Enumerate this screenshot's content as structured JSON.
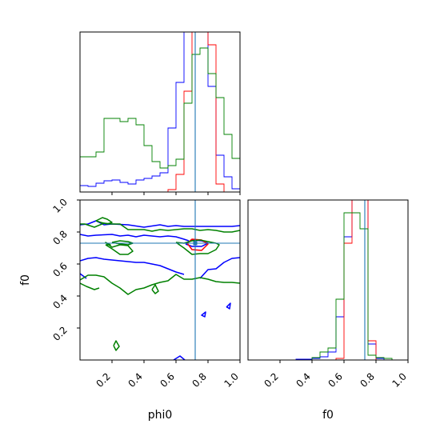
{
  "colors": {
    "blue": "#0000ff",
    "red": "#ff0000",
    "green": "#008000",
    "truth": "#1f77b4",
    "axis": "#000000"
  },
  "chart_data": {
    "type": "corner",
    "parameters": [
      "phi0",
      "f0"
    ],
    "truth": {
      "phi0": 0.72,
      "f0": 0.73
    },
    "axes": {
      "phi0": {
        "label": "phi0",
        "lim": [
          0.0,
          1.0
        ],
        "ticks": [
          0.2,
          0.4,
          0.6,
          0.8,
          1.0
        ],
        "tick_labels": [
          "0.2",
          "0.4",
          "0.6",
          "0.8",
          "1.0"
        ]
      },
      "f0": {
        "label": "f0",
        "lim": [
          0.0,
          1.0
        ],
        "ticks": [
          0.2,
          0.4,
          0.6,
          0.8,
          1.0
        ],
        "tick_labels": [
          "0.2",
          "0.4",
          "0.6",
          "0.8",
          "1.0"
        ]
      }
    },
    "hist_phi0": {
      "bin_edges": [
        0.0,
        0.05,
        0.1,
        0.15,
        0.2,
        0.25,
        0.3,
        0.35,
        0.4,
        0.45,
        0.5,
        0.55,
        0.6,
        0.65,
        0.7,
        0.75,
        0.8,
        0.85,
        0.9,
        0.95,
        1.0
      ],
      "ymax": 1.0,
      "series": [
        {
          "color": "blue",
          "values": [
            0.04,
            0.035,
            0.055,
            0.07,
            0.075,
            0.06,
            0.05,
            0.075,
            0.085,
            0.1,
            0.12,
            0.4,
            0.685,
            1.0,
            1.25,
            1.25,
            0.66,
            0.23,
            0.095,
            0.02
          ]
        },
        {
          "color": "red",
          "values": [
            0.0,
            0.0,
            0.0,
            0.0,
            0.0,
            0.0,
            0.0,
            0.0,
            0.0,
            0.0,
            0.0,
            0.015,
            0.11,
            0.63,
            1.2,
            1.23,
            0.92,
            0.05,
            0.0,
            0.0
          ]
        },
        {
          "color": "green",
          "values": [
            0.22,
            0.22,
            0.25,
            0.46,
            0.46,
            0.44,
            0.46,
            0.42,
            0.29,
            0.19,
            0.15,
            0.165,
            0.205,
            0.555,
            0.86,
            0.9,
            0.74,
            0.59,
            0.36,
            0.21
          ]
        }
      ]
    },
    "hist_f0": {
      "bin_edges": [
        0.0,
        0.05,
        0.1,
        0.15,
        0.2,
        0.25,
        0.3,
        0.35,
        0.4,
        0.45,
        0.5,
        0.55,
        0.6,
        0.65,
        0.7,
        0.75,
        0.8,
        0.85,
        0.9,
        0.95,
        1.0
      ],
      "ymax": 1.0,
      "series": [
        {
          "color": "blue",
          "values": [
            0.0,
            0.0,
            0.0,
            0.0,
            0.0,
            0.0,
            0.005,
            0.005,
            0.01,
            0.02,
            0.05,
            0.27,
            0.77,
            1.12,
            1.12,
            0.1,
            0.01,
            0.0,
            0.0,
            0.0
          ]
        },
        {
          "color": "red",
          "values": [
            0.0,
            0.0,
            0.0,
            0.0,
            0.0,
            0.0,
            0.0,
            0.0,
            0.0,
            0.0,
            0.0,
            0.01,
            0.73,
            1.12,
            1.12,
            0.12,
            0.0,
            0.0,
            0.0,
            0.0
          ]
        },
        {
          "color": "green",
          "values": [
            0.0,
            0.0,
            0.0,
            0.0,
            0.0,
            0.0,
            0.0,
            0.0,
            0.015,
            0.05,
            0.075,
            0.38,
            0.92,
            0.92,
            0.82,
            0.03,
            0.015,
            0.01,
            0.0,
            0.0
          ]
        }
      ]
    },
    "contours_phi0_f0": [
      {
        "color": "blue",
        "x": [
          0.0,
          0.05,
          0.1,
          0.15,
          0.2,
          0.3,
          0.4,
          0.5,
          0.55,
          0.6,
          0.65,
          0.7,
          0.75,
          0.8,
          0.85,
          0.9,
          0.95,
          1.0
        ],
        "y": [
          0.845,
          0.85,
          0.87,
          0.845,
          0.85,
          0.845,
          0.83,
          0.845,
          0.835,
          0.84,
          0.835,
          0.835,
          0.835,
          0.835,
          0.835,
          0.835,
          0.835,
          0.84
        ]
      },
      {
        "color": "blue",
        "x": [
          0.0,
          0.05,
          0.1,
          0.2,
          0.25,
          0.3,
          0.35,
          0.4,
          0.45,
          0.5,
          0.55,
          0.6,
          0.65,
          0.68
        ],
        "y": [
          0.785,
          0.775,
          0.78,
          0.785,
          0.775,
          0.78,
          0.77,
          0.78,
          0.775,
          0.77,
          0.775,
          0.77,
          0.755,
          0.745
        ]
      },
      {
        "color": "blue",
        "x": [
          0.0,
          0.05,
          0.1,
          0.15,
          0.2,
          0.25,
          0.3,
          0.35,
          0.4,
          0.45,
          0.5,
          0.55,
          0.6,
          0.65
        ],
        "y": [
          0.62,
          0.635,
          0.64,
          0.63,
          0.625,
          0.62,
          0.615,
          0.61,
          0.61,
          0.6,
          0.59,
          0.57,
          0.55,
          0.535
        ]
      },
      {
        "color": "blue",
        "x": [
          0.75,
          0.8,
          0.85,
          0.9,
          0.95,
          1.0
        ],
        "y": [
          0.51,
          0.565,
          0.57,
          0.61,
          0.635,
          0.64
        ]
      },
      {
        "color": "blue",
        "x": [
          0.0,
          0.04
        ],
        "y": [
          0.54,
          0.51
        ]
      },
      {
        "color": "blue",
        "x": [
          0.585,
          0.625,
          0.655
        ],
        "y": [
          0.0,
          0.025,
          0.0
        ]
      },
      {
        "color": "blue",
        "x": [
          0.76,
          0.785,
          0.78,
          0.76,
          0.765
        ],
        "y": [
          0.28,
          0.3,
          0.27,
          0.28,
          0.28
        ]
      },
      {
        "color": "blue",
        "x": [
          0.915,
          0.94,
          0.935,
          0.92,
          0.915
        ],
        "y": [
          0.33,
          0.355,
          0.32,
          0.33,
          0.33
        ]
      },
      {
        "color": "blue",
        "x": [
          0.66,
          0.7,
          0.76,
          0.8,
          0.76,
          0.7,
          0.66
        ],
        "y": [
          0.725,
          0.75,
          0.745,
          0.73,
          0.71,
          0.71,
          0.725
        ]
      },
      {
        "color": "red",
        "x": [
          0.67,
          0.7,
          0.76,
          0.8,
          0.76,
          0.7,
          0.67
        ],
        "y": [
          0.73,
          0.755,
          0.75,
          0.725,
          0.685,
          0.69,
          0.73
        ]
      },
      {
        "color": "green",
        "x": [
          0.0,
          0.03,
          0.09,
          0.15,
          0.2,
          0.25,
          0.3,
          0.35,
          0.4,
          0.45,
          0.5,
          0.55,
          0.6,
          0.65,
          0.7,
          0.75,
          0.8,
          0.85,
          0.9,
          0.95,
          1.0
        ],
        "y": [
          0.85,
          0.85,
          0.83,
          0.855,
          0.85,
          0.85,
          0.815,
          0.815,
          0.815,
          0.805,
          0.815,
          0.81,
          0.815,
          0.82,
          0.82,
          0.81,
          0.815,
          0.81,
          0.8,
          0.8,
          0.81
        ]
      },
      {
        "color": "green",
        "x": [
          0.1,
          0.14,
          0.17,
          0.2,
          0.17,
          0.13,
          0.1
        ],
        "y": [
          0.87,
          0.89,
          0.88,
          0.86,
          0.85,
          0.86,
          0.87
        ]
      },
      {
        "color": "green",
        "x": [
          0.16,
          0.2,
          0.25,
          0.3,
          0.33,
          0.3,
          0.25,
          0.2,
          0.16,
          0.19,
          0.16
        ],
        "y": [
          0.72,
          0.695,
          0.66,
          0.66,
          0.68,
          0.715,
          0.72,
          0.705,
          0.735,
          0.72,
          0.72
        ]
      },
      {
        "color": "green",
        "x": [
          0.2,
          0.25,
          0.3,
          0.33,
          0.3,
          0.25,
          0.2
        ],
        "y": [
          0.735,
          0.745,
          0.74,
          0.73,
          0.72,
          0.725,
          0.735
        ]
      },
      {
        "color": "green",
        "x": [
          0.6,
          0.65,
          0.7,
          0.75,
          0.8,
          0.85,
          0.87,
          0.85,
          0.8,
          0.75,
          0.7,
          0.65,
          0.6
        ],
        "y": [
          0.735,
          0.73,
          0.745,
          0.75,
          0.74,
          0.73,
          0.72,
          0.69,
          0.665,
          0.665,
          0.66,
          0.7,
          0.735
        ]
      },
      {
        "color": "green",
        "x": [
          0.0,
          0.05,
          0.1,
          0.15,
          0.2,
          0.25,
          0.3,
          0.35,
          0.4,
          0.45,
          0.5,
          0.55,
          0.6,
          0.65,
          0.7,
          0.75,
          0.8,
          0.85,
          0.9,
          0.95,
          1.0
        ],
        "y": [
          0.5,
          0.53,
          0.53,
          0.52,
          0.48,
          0.45,
          0.41,
          0.44,
          0.45,
          0.47,
          0.485,
          0.495,
          0.535,
          0.505,
          0.505,
          0.515,
          0.505,
          0.49,
          0.485,
          0.485,
          0.48
        ]
      },
      {
        "color": "green",
        "x": [
          0.0,
          0.04,
          0.09,
          0.12
        ],
        "y": [
          0.48,
          0.46,
          0.44,
          0.45
        ]
      },
      {
        "color": "green",
        "x": [
          0.45,
          0.47,
          0.49,
          0.47,
          0.45
        ],
        "y": [
          0.44,
          0.47,
          0.43,
          0.415,
          0.44
        ]
      },
      {
        "color": "green",
        "x": [
          0.21,
          0.225,
          0.245,
          0.225,
          0.21
        ],
        "y": [
          0.09,
          0.12,
          0.085,
          0.06,
          0.09
        ]
      }
    ]
  }
}
